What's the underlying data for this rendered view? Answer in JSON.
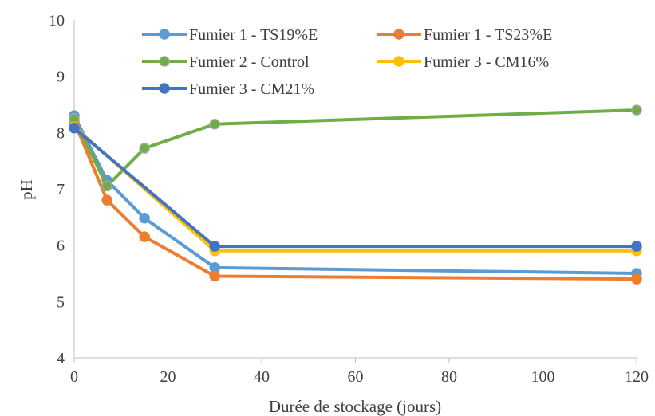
{
  "chart_data": {
    "type": "line",
    "title": "",
    "xlabel": "Durée de stockage (jours)",
    "ylabel": "pH",
    "xlim": [
      0,
      120
    ],
    "ylim": [
      4,
      10
    ],
    "xticks": [
      "0",
      "20",
      "40",
      "60",
      "80",
      "100",
      "120"
    ],
    "yticks": [
      "4",
      "5",
      "6",
      "7",
      "8",
      "9",
      "10"
    ],
    "grid": false,
    "legend": "top",
    "series": [
      {
        "name": "Fumier 1 - TS19%E",
        "color": "#5b9bd5",
        "x": [
          0,
          7,
          15,
          30,
          120
        ],
        "y": [
          8.3,
          7.15,
          6.48,
          5.6,
          5.5
        ]
      },
      {
        "name": "Fumier 1 - TS23%E",
        "color": "#ed7d31",
        "x": [
          0,
          7,
          15,
          30,
          120
        ],
        "y": [
          8.2,
          6.8,
          6.15,
          5.45,
          5.4
        ]
      },
      {
        "name": "Fumier 2 - Control",
        "color": "#70ad47",
        "marker_stroke": "#a5a5a5",
        "x": [
          0,
          7,
          15,
          30,
          120
        ],
        "y": [
          8.25,
          7.05,
          7.72,
          8.15,
          8.4
        ]
      },
      {
        "name": "Fumier 3 - CM16%",
        "color": "#ffc000",
        "x": [
          0,
          30,
          120
        ],
        "y": [
          8.1,
          5.9,
          5.9
        ]
      },
      {
        "name": "Fumier 3 - CM21%",
        "color": "#4472c4",
        "x": [
          0,
          30,
          120
        ],
        "y": [
          8.08,
          5.98,
          5.98
        ]
      }
    ]
  }
}
